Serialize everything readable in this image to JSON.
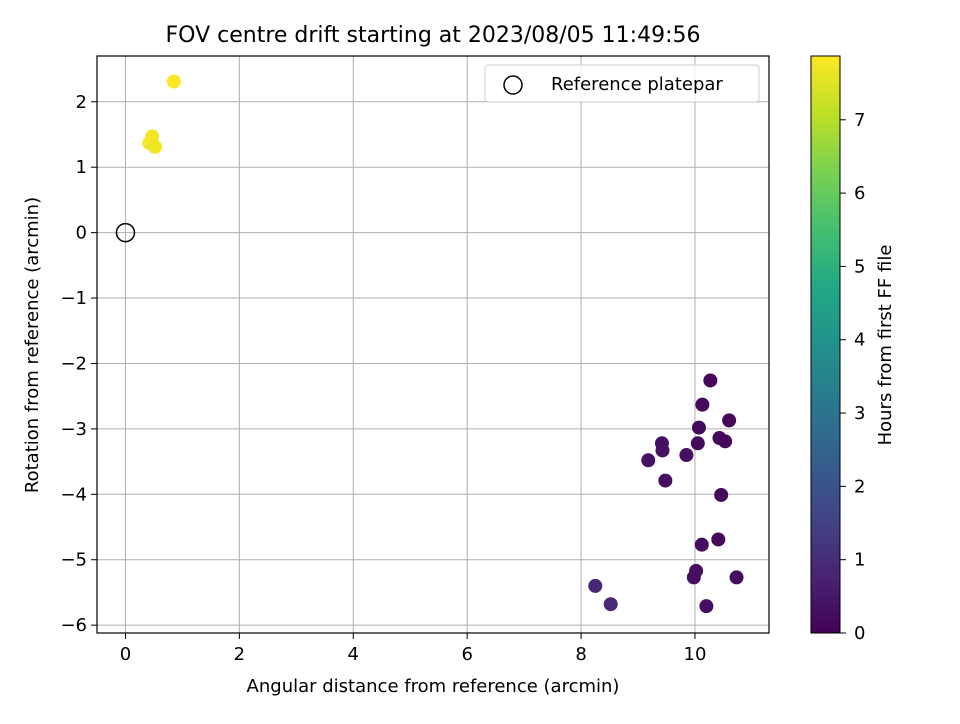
{
  "chart_data": {
    "type": "scatter",
    "title": "FOV centre drift starting at 2023/08/05 11:49:56",
    "xlabel": "Angular distance from reference (arcmin)",
    "ylabel": "Rotation from reference (arcmin)",
    "xlim": [
      -0.5,
      11.3
    ],
    "ylim": [
      -6.12,
      2.7
    ],
    "xticks": [
      0,
      2,
      4,
      6,
      8,
      10
    ],
    "yticks": [
      -6,
      -5,
      -4,
      -3,
      -2,
      -1,
      0,
      1,
      2
    ],
    "grid": true,
    "legend": {
      "position": "top-right",
      "label": "Reference platepar"
    },
    "reference_point": {
      "x": 0,
      "y": 0
    },
    "colorbar": {
      "label": "Hours from first FF file",
      "colormap": "viridis",
      "range": [
        0,
        7.87
      ],
      "ticks": [
        0,
        1,
        2,
        3,
        4,
        5,
        6,
        7
      ]
    },
    "points": [
      {
        "x": 0.85,
        "y": 2.31,
        "c": 7.85
      },
      {
        "x": 0.47,
        "y": 1.47,
        "c": 7.75
      },
      {
        "x": 0.42,
        "y": 1.37,
        "c": 7.8
      },
      {
        "x": 0.52,
        "y": 1.31,
        "c": 7.7
      },
      {
        "x": 10.27,
        "y": -2.26,
        "c": 0.15
      },
      {
        "x": 10.13,
        "y": -2.63,
        "c": 0.2
      },
      {
        "x": 10.6,
        "y": -2.87,
        "c": 0.15
      },
      {
        "x": 10.07,
        "y": -2.98,
        "c": 0.2
      },
      {
        "x": 10.43,
        "y": -3.14,
        "c": 0.2
      },
      {
        "x": 10.53,
        "y": -3.19,
        "c": 0.15
      },
      {
        "x": 10.05,
        "y": -3.22,
        "c": 0.2
      },
      {
        "x": 9.42,
        "y": -3.22,
        "c": 0.3
      },
      {
        "x": 9.43,
        "y": -3.33,
        "c": 0.35
      },
      {
        "x": 9.85,
        "y": -3.4,
        "c": 0.3
      },
      {
        "x": 9.18,
        "y": -3.48,
        "c": 0.35
      },
      {
        "x": 9.48,
        "y": -3.79,
        "c": 0.3
      },
      {
        "x": 10.46,
        "y": -4.01,
        "c": 0.2
      },
      {
        "x": 10.41,
        "y": -4.69,
        "c": 0.2
      },
      {
        "x": 10.12,
        "y": -4.77,
        "c": 0.3
      },
      {
        "x": 10.02,
        "y": -5.17,
        "c": 0.35
      },
      {
        "x": 9.98,
        "y": -5.27,
        "c": 0.3
      },
      {
        "x": 10.73,
        "y": -5.27,
        "c": 0.25
      },
      {
        "x": 8.25,
        "y": -5.4,
        "c": 0.85
      },
      {
        "x": 8.52,
        "y": -5.68,
        "c": 0.9
      },
      {
        "x": 10.2,
        "y": -5.71,
        "c": 0.3
      }
    ]
  }
}
